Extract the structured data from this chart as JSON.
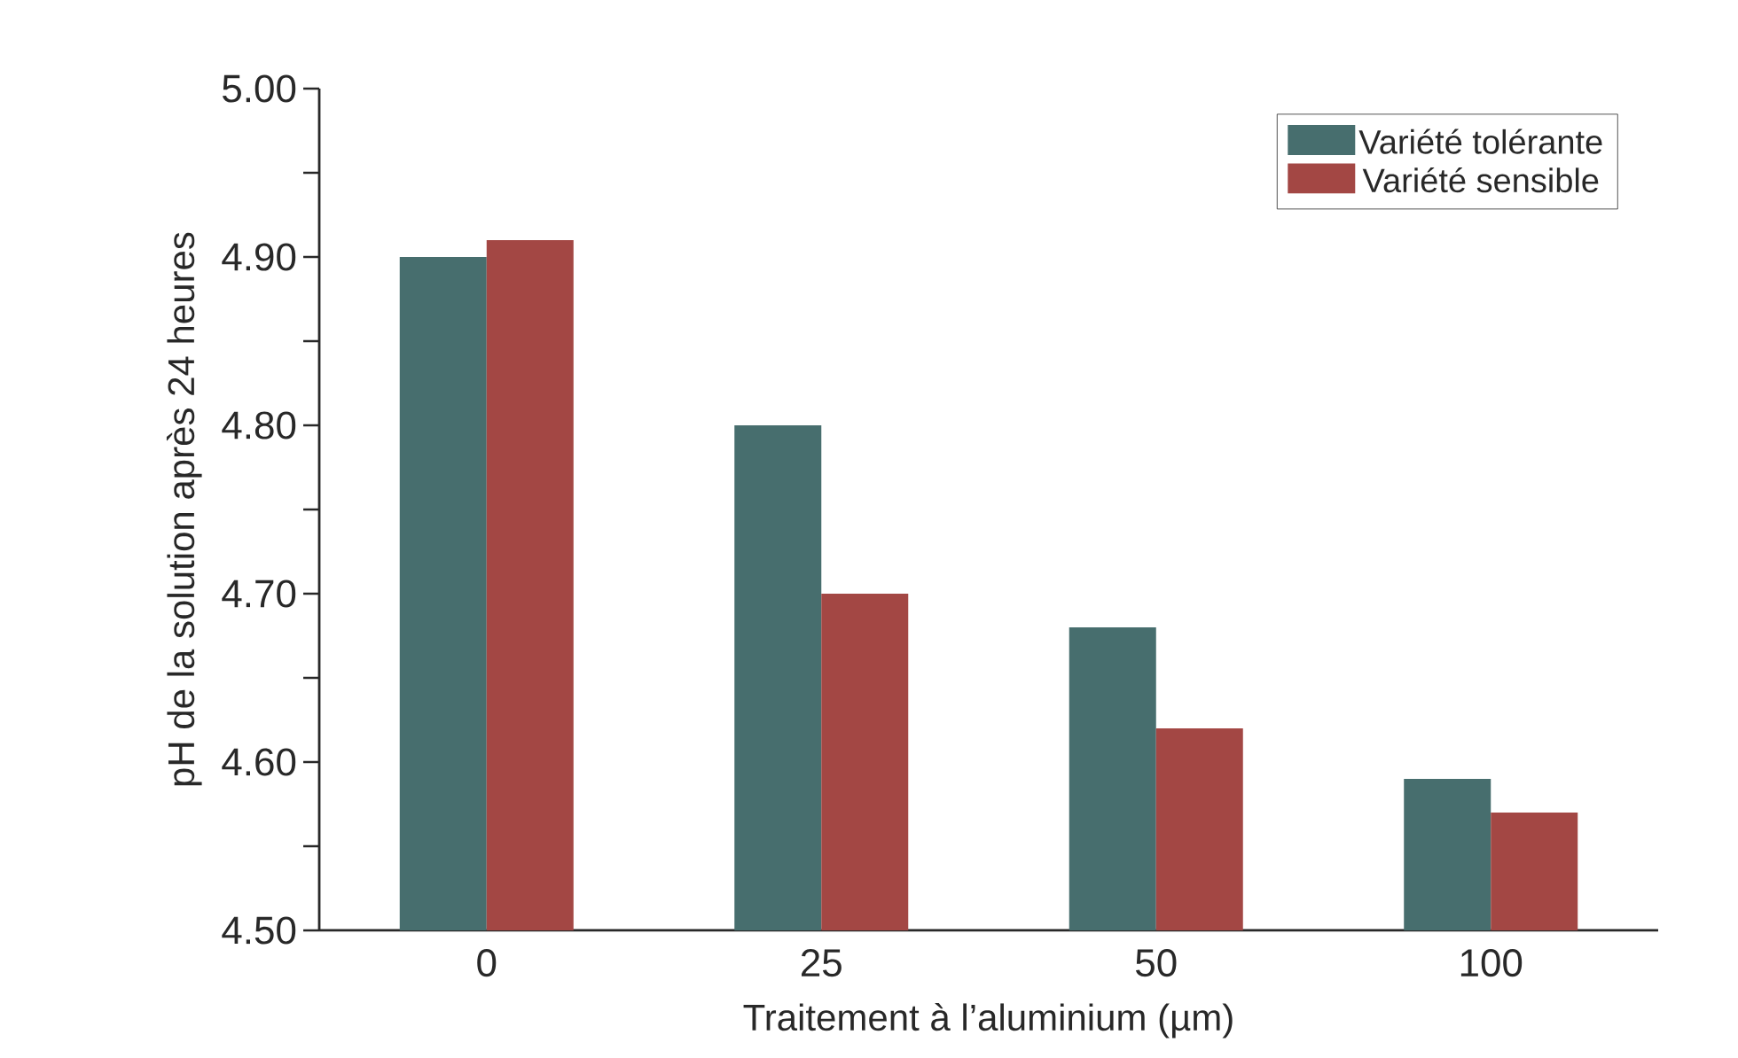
{
  "chart_data": {
    "type": "bar",
    "xlabel": "Traitement à l’aluminium (µm)",
    "ylabel": "pH de la solution après 24 heures",
    "categories": [
      "0",
      "25",
      "50",
      "100"
    ],
    "series": [
      {
        "name": "Variété tolérante",
        "color": "#476e6e",
        "values": [
          4.9,
          4.8,
          4.68,
          4.59
        ]
      },
      {
        "name": "Variété sensible",
        "color": "#a34744",
        "values": [
          4.91,
          4.7,
          4.62,
          4.57
        ]
      }
    ],
    "ylim": [
      4.5,
      5.0
    ],
    "yticks": [
      {
        "value": 4.5,
        "label": "4.50"
      },
      {
        "value": 4.55,
        "label": null
      },
      {
        "value": 4.6,
        "label": "4.60"
      },
      {
        "value": 4.65,
        "label": null
      },
      {
        "value": 4.7,
        "label": "4.70"
      },
      {
        "value": 4.75,
        "label": null
      },
      {
        "value": 4.8,
        "label": "4.80"
      },
      {
        "value": 4.85,
        "label": null
      },
      {
        "value": 4.9,
        "label": "4.90"
      },
      {
        "value": 4.95,
        "label": null
      },
      {
        "value": 5.0,
        "label": "5.00"
      }
    ],
    "legend": "top right",
    "grid": false
  }
}
